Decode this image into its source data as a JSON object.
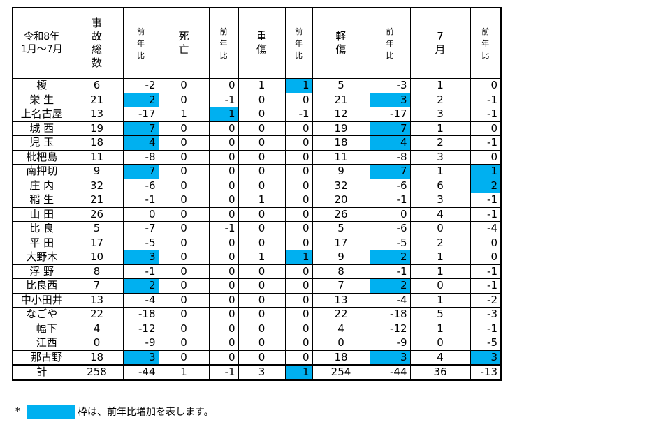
{
  "header": {
    "title": "令和8年\n1月〜7月"
  },
  "columns": [
    {
      "label": "事故総数",
      "kind": "count"
    },
    {
      "label": "前年比",
      "kind": "diff"
    },
    {
      "label": "死亡",
      "kind": "count"
    },
    {
      "label": "前年比",
      "kind": "diff"
    },
    {
      "label": "重傷",
      "kind": "count"
    },
    {
      "label": "前年比",
      "kind": "diff"
    },
    {
      "label": "軽傷",
      "kind": "count"
    },
    {
      "label": "前年比",
      "kind": "diff"
    },
    {
      "label": "7月",
      "kind": "count"
    },
    {
      "label": "前年比",
      "kind": "diff"
    }
  ],
  "rows": [
    {
      "label": "榎",
      "values": [
        6,
        -2,
        0,
        0,
        1,
        1,
        5,
        -3,
        1,
        0
      ]
    },
    {
      "label": "栄 生",
      "values": [
        21,
        2,
        0,
        -1,
        0,
        0,
        21,
        3,
        2,
        -1
      ]
    },
    {
      "label": "上名古屋",
      "values": [
        13,
        -17,
        1,
        1,
        0,
        -1,
        12,
        -17,
        3,
        -1
      ]
    },
    {
      "label": "城 西",
      "values": [
        19,
        7,
        0,
        0,
        0,
        0,
        19,
        7,
        1,
        0
      ]
    },
    {
      "label": "児 玉",
      "values": [
        18,
        4,
        0,
        0,
        0,
        0,
        18,
        4,
        2,
        -1
      ]
    },
    {
      "label": "枇杷島",
      "values": [
        11,
        -8,
        0,
        0,
        0,
        0,
        11,
        -8,
        3,
        0
      ]
    },
    {
      "label": "南押切",
      "values": [
        9,
        7,
        0,
        0,
        0,
        0,
        9,
        7,
        1,
        1
      ]
    },
    {
      "label": "庄 内",
      "values": [
        32,
        -6,
        0,
        0,
        0,
        0,
        32,
        -6,
        6,
        2
      ]
    },
    {
      "label": "稲 生",
      "values": [
        21,
        -1,
        0,
        0,
        1,
        0,
        20,
        -1,
        3,
        -1
      ]
    },
    {
      "label": "山 田",
      "values": [
        26,
        0,
        0,
        0,
        0,
        0,
        26,
        0,
        4,
        -1
      ]
    },
    {
      "label": "比 良",
      "values": [
        5,
        -7,
        0,
        -1,
        0,
        0,
        5,
        -6,
        0,
        -4
      ]
    },
    {
      "label": "平 田",
      "values": [
        17,
        -5,
        0,
        0,
        0,
        0,
        17,
        -5,
        2,
        0
      ]
    },
    {
      "label": "大野木",
      "values": [
        10,
        3,
        0,
        0,
        1,
        1,
        9,
        2,
        1,
        0
      ]
    },
    {
      "label": "浮 野",
      "values": [
        8,
        -1,
        0,
        0,
        0,
        0,
        8,
        -1,
        1,
        -1
      ]
    },
    {
      "label": "比良西",
      "values": [
        7,
        2,
        0,
        0,
        0,
        0,
        7,
        2,
        0,
        -1
      ]
    },
    {
      "label": "中小田井",
      "values": [
        13,
        -4,
        0,
        0,
        0,
        0,
        13,
        -4,
        1,
        -2
      ]
    },
    {
      "label": "なごや",
      "values": [
        22,
        -18,
        0,
        0,
        0,
        0,
        22,
        -18,
        5,
        -3
      ]
    },
    {
      "label": "幅下",
      "indent": true,
      "values": [
        4,
        -12,
        0,
        0,
        0,
        0,
        4,
        -12,
        1,
        -1
      ]
    },
    {
      "label": "江西",
      "indent": true,
      "values": [
        0,
        -9,
        0,
        0,
        0,
        0,
        0,
        -9,
        0,
        -5
      ]
    },
    {
      "label": "那古野",
      "indent": true,
      "values": [
        18,
        3,
        0,
        0,
        0,
        0,
        18,
        3,
        4,
        3
      ]
    },
    {
      "label": "計",
      "total": true,
      "values": [
        258,
        -44,
        1,
        -1,
        3,
        1,
        254,
        -44,
        36,
        -13
      ]
    }
  ],
  "footnote": {
    "mark": "*",
    "text": "枠は、前年比増加を表します。"
  }
}
